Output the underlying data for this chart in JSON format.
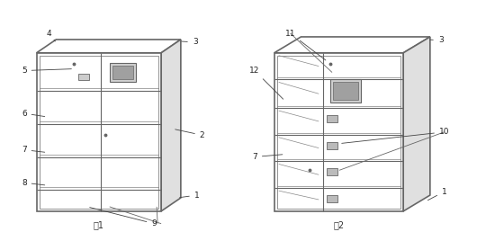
{
  "lc": "#666666",
  "lw": 0.8,
  "lwt": 1.2,
  "fig1_caption": "图1",
  "fig2_caption": "图2",
  "font_size": 6.5
}
